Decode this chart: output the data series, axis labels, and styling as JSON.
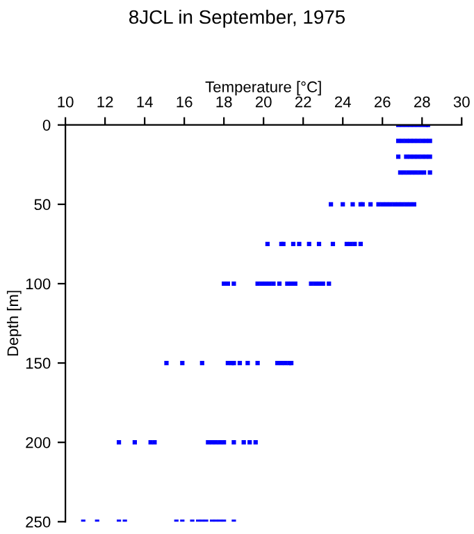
{
  "chart_data": {
    "type": "scatter",
    "title": "8JCL in September, 1975",
    "xlabel": "Temperature [°C]",
    "ylabel": "Depth [m]",
    "xlim": [
      10,
      30
    ],
    "xticks": [
      10,
      12,
      14,
      16,
      18,
      20,
      22,
      24,
      26,
      28,
      30
    ],
    "ylim": [
      250,
      0
    ],
    "yticks": [
      0,
      50,
      100,
      150,
      200,
      250
    ],
    "grid": false,
    "marker": "square",
    "series": [
      {
        "color": "#0000ff",
        "x": [
          26.8,
          27.0,
          27.2,
          27.4,
          27.6,
          27.8,
          28.0,
          28.2,
          28.3,
          26.8,
          27.0,
          27.2,
          27.4,
          27.6,
          27.8,
          28.0,
          28.2,
          28.4,
          26.8,
          27.2,
          27.4,
          27.6,
          27.8,
          28.0,
          28.2,
          28.4,
          26.9,
          27.1,
          27.3,
          27.5,
          27.7,
          27.9,
          28.1,
          28.4,
          23.4,
          24.0,
          24.5,
          24.9,
          25.0,
          25.4,
          25.8,
          26.0,
          26.2,
          26.4,
          26.6,
          26.8,
          27.0,
          27.2,
          27.4,
          27.6,
          20.2,
          20.9,
          21.0,
          21.5,
          21.8,
          22.3,
          22.8,
          23.5,
          24.2,
          24.4,
          24.6,
          24.9,
          18.0,
          18.2,
          18.5,
          19.7,
          19.9,
          20.1,
          20.3,
          20.5,
          20.8,
          21.2,
          21.4,
          21.6,
          22.4,
          22.6,
          22.8,
          23.0,
          23.3,
          15.1,
          15.9,
          16.9,
          18.2,
          18.4,
          18.5,
          18.8,
          19.2,
          19.7,
          20.7,
          20.9,
          21.1,
          21.3,
          21.4,
          12.7,
          13.5,
          14.3,
          14.5,
          17.2,
          17.4,
          17.6,
          17.8,
          18.0,
          18.5,
          19.0,
          19.3,
          19.6,
          10.9,
          11.6,
          12.7,
          13.0,
          15.6,
          15.9,
          16.4,
          16.7,
          16.9,
          17.1,
          17.4,
          17.6,
          17.8,
          18.0,
          18.5
        ],
        "values": [
          0,
          0,
          0,
          0,
          0,
          0,
          0,
          0,
          0,
          10,
          10,
          10,
          10,
          10,
          10,
          10,
          10,
          10,
          20,
          20,
          20,
          20,
          20,
          20,
          20,
          20,
          30,
          30,
          30,
          30,
          30,
          30,
          30,
          30,
          50,
          50,
          50,
          50,
          50,
          50,
          50,
          50,
          50,
          50,
          50,
          50,
          50,
          50,
          50,
          50,
          75,
          75,
          75,
          75,
          75,
          75,
          75,
          75,
          75,
          75,
          75,
          75,
          100,
          100,
          100,
          100,
          100,
          100,
          100,
          100,
          100,
          100,
          100,
          100,
          100,
          100,
          100,
          100,
          100,
          150,
          150,
          150,
          150,
          150,
          150,
          150,
          150,
          150,
          150,
          150,
          150,
          150,
          150,
          200,
          200,
          200,
          200,
          200,
          200,
          200,
          200,
          200,
          200,
          200,
          200,
          200,
          250,
          250,
          250,
          250,
          250,
          250,
          250,
          250,
          250,
          250,
          250,
          250,
          250,
          250,
          250
        ]
      }
    ]
  }
}
